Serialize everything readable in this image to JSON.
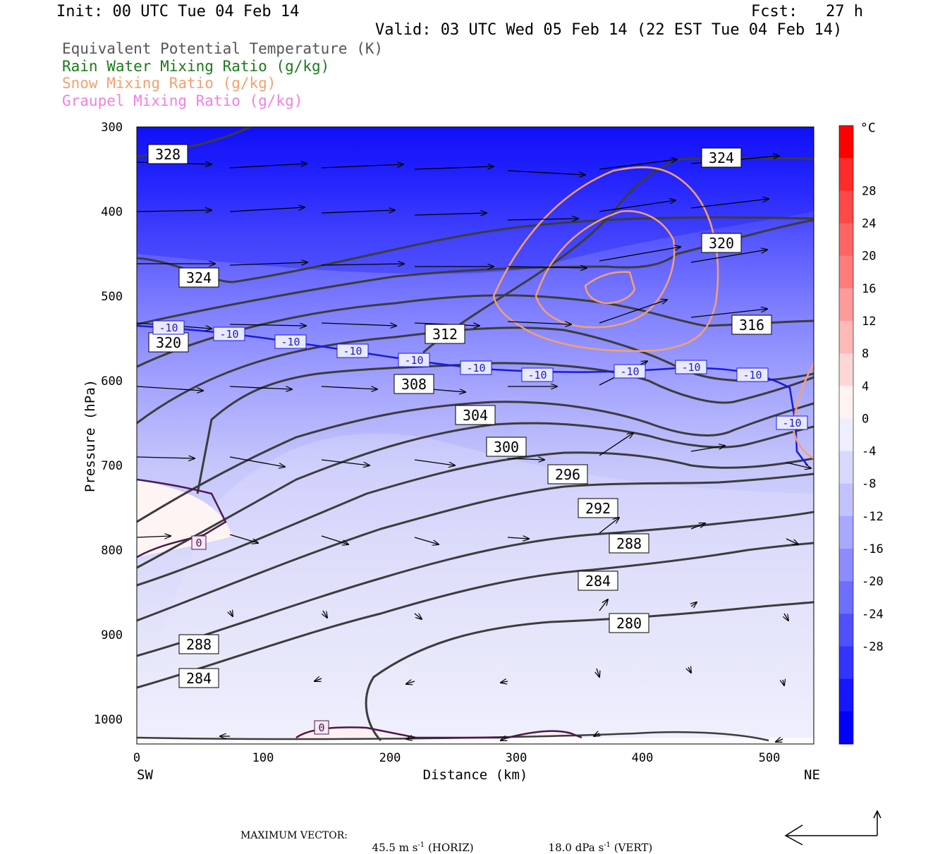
{
  "header": {
    "init": "Init: 00 UTC Tue 04 Feb 14",
    "fcst": "Fcst:   27 h",
    "valid": "Valid: 03 UTC Wed 05 Feb 14 (22 EST Tue 04 Feb 14)"
  },
  "legend": [
    {
      "label": "Equivalent Potential Temperature (K)",
      "color": "#555555"
    },
    {
      "label": "Rain Water Mixing Ratio (g/kg)",
      "color": "#1a7a1a"
    },
    {
      "label": "Snow Mixing Ratio (g/kg)",
      "color": "#f4a070"
    },
    {
      "label": "Graupel Mixing Ratio (g/kg)",
      "color": "#f080e8"
    }
  ],
  "footer": {
    "max_vector_label": "MAXIMUM VECTOR:",
    "horiz": "45.5 m s",
    "horiz_unit": "(HORIZ)",
    "vert": "18.0 dPa s",
    "vert_unit": "(VERT)",
    "exp": "-1"
  },
  "chart_data": {
    "type": "cross-section",
    "xlabel": "Distance (km)",
    "ylabel": "Pressure (hPa)",
    "x_ticks": [
      0,
      100,
      200,
      300,
      400,
      500
    ],
    "y_ticks": [
      300,
      400,
      500,
      600,
      700,
      800,
      900,
      1000
    ],
    "xlim": [
      0,
      535
    ],
    "ylim": [
      1030,
      300
    ],
    "x_left_label": "SW",
    "x_right_label": "NE",
    "colorbar": {
      "unit": "°C",
      "tick_labels": [
        "28",
        "24",
        "20",
        "16",
        "12",
        "8",
        "4",
        "0",
        "-4",
        "-8",
        "-12",
        "-16",
        "-20",
        "-24",
        "-28"
      ],
      "colors": [
        "#ff0000",
        "#ff2a2a",
        "#ff4848",
        "#ff6464",
        "#ff7c7c",
        "#ff9a9a",
        "#ffb8b8",
        "#ffd6d6",
        "#fff2f2",
        "#eeeeff",
        "#d8d8ff",
        "#c2c2ff",
        "#a8a8ff",
        "#8c8cff",
        "#6e6eff",
        "#5050ff",
        "#3434ff",
        "#1616ff",
        "#0000ff"
      ]
    },
    "theta_e_labels": [
      "328",
      "324",
      "324",
      "320",
      "320",
      "316",
      "312",
      "308",
      "304",
      "300",
      "296",
      "292",
      "288",
      "288",
      "284",
      "284",
      "280"
    ],
    "temp_labels": [
      "-10",
      "-10",
      "-10",
      "-10",
      "-10",
      "-10",
      "-10",
      "-10",
      "-10",
      "-10",
      "-10",
      "-10",
      "0",
      "0"
    ]
  }
}
